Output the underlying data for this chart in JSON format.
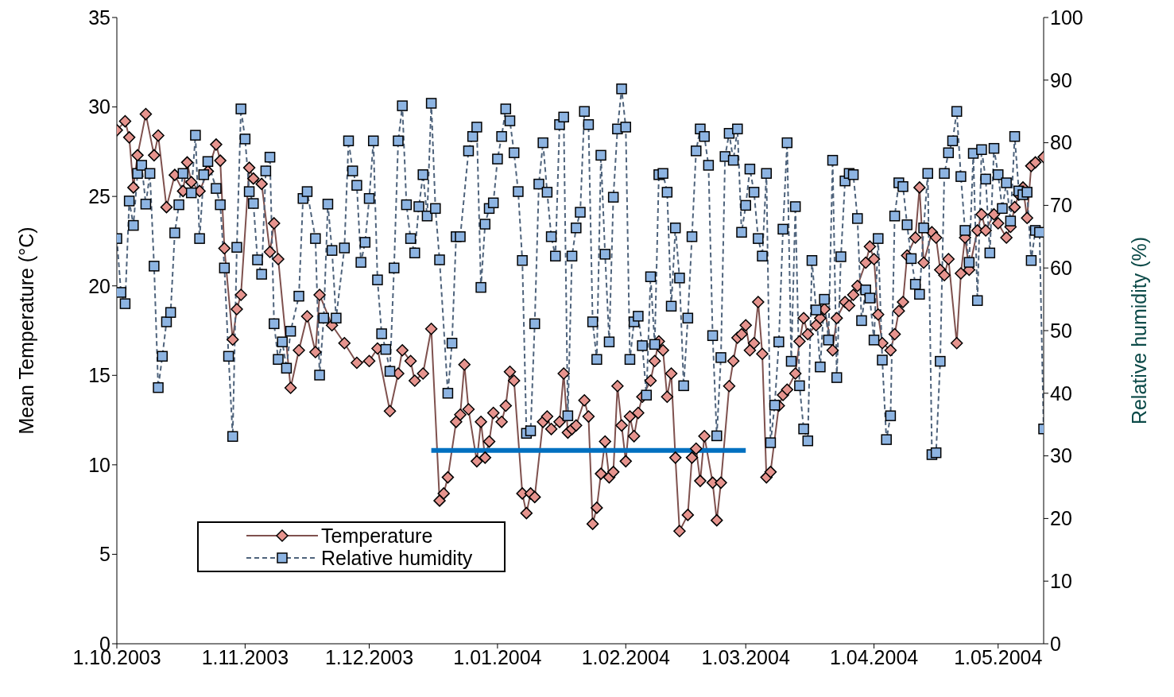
{
  "chart_data": {
    "type": "line",
    "ylabel": "Mean Temperature  (°C)",
    "y2label": "Relative humidity (%)",
    "xlim": [
      "2003-10-01",
      "2004-05-12"
    ],
    "xticks": [
      {
        "value": "2003-10-01",
        "label": "1.10.2003"
      },
      {
        "value": "2003-11-01",
        "label": "1.11.2003"
      },
      {
        "value": "2003-12-01",
        "label": "1.12.2003"
      },
      {
        "value": "2004-01-01",
        "label": "1.01.2004"
      },
      {
        "value": "2004-02-01",
        "label": "1.02.2004"
      },
      {
        "value": "2004-03-01",
        "label": "1.03.2004"
      },
      {
        "value": "2004-04-01",
        "label": "1.04.2004"
      },
      {
        "value": "2004-05-01",
        "label": "1.05.2004"
      }
    ],
    "ylim": [
      0,
      35
    ],
    "yticks": [
      0,
      5,
      10,
      15,
      20,
      25,
      30,
      35
    ],
    "y2lim": [
      0,
      100
    ],
    "y2ticks": [
      0,
      10,
      20,
      30,
      40,
      50,
      60,
      70,
      80,
      90,
      100
    ],
    "grid": false,
    "legend": "bottom left",
    "series": [
      {
        "name": "Temperature",
        "color": "#e6948e",
        "marker": "diamond",
        "line_style": "solid",
        "x": [
          "2003-10-01",
          "2003-10-03",
          "2003-10-04",
          "2003-10-05",
          "2003-10-06",
          "2003-10-08",
          "2003-10-10",
          "2003-10-11",
          "2003-10-13",
          "2003-10-15",
          "2003-10-17",
          "2003-10-18",
          "2003-10-19",
          "2003-10-21",
          "2003-10-23",
          "2003-10-25",
          "2003-10-26",
          "2003-10-27",
          "2003-10-29",
          "2003-10-30",
          "2003-10-31",
          "2003-11-02",
          "2003-11-03",
          "2003-11-05",
          "2003-11-07",
          "2003-11-08",
          "2003-11-09",
          "2003-11-12",
          "2003-11-14",
          "2003-11-16",
          "2003-11-18",
          "2003-11-19",
          "2003-11-22",
          "2003-11-25",
          "2003-11-28",
          "2003-12-01",
          "2003-12-03",
          "2003-12-06",
          "2003-12-08",
          "2003-12-09",
          "2003-12-11",
          "2003-12-12",
          "2003-12-14",
          "2003-12-16",
          "2003-12-18",
          "2003-12-19",
          "2003-12-20",
          "2003-12-22",
          "2003-12-23",
          "2003-12-24",
          "2003-12-25",
          "2003-12-27",
          "2003-12-28",
          "2003-12-29",
          "2003-12-30",
          "2003-12-31",
          "2004-01-02",
          "2004-01-03",
          "2004-01-04",
          "2004-01-05",
          "2004-01-07",
          "2004-01-08",
          "2004-01-09",
          "2004-01-10",
          "2004-01-12",
          "2004-01-13",
          "2004-01-14",
          "2004-01-16",
          "2004-01-17",
          "2004-01-18",
          "2004-01-19",
          "2004-01-20",
          "2004-01-22",
          "2004-01-23",
          "2004-01-24",
          "2004-01-25",
          "2004-01-26",
          "2004-01-27",
          "2004-01-28",
          "2004-01-29",
          "2004-01-30",
          "2004-01-31",
          "2004-02-01",
          "2004-02-02",
          "2004-02-03",
          "2004-02-04",
          "2004-02-05",
          "2004-02-07",
          "2004-02-08",
          "2004-02-09",
          "2004-02-10",
          "2004-02-11",
          "2004-02-12",
          "2004-02-13",
          "2004-02-14",
          "2004-02-16",
          "2004-02-17",
          "2004-02-18",
          "2004-02-19",
          "2004-02-20",
          "2004-02-22",
          "2004-02-23",
          "2004-02-24",
          "2004-02-26",
          "2004-02-27",
          "2004-02-28",
          "2004-02-29",
          "2004-03-01",
          "2004-03-02",
          "2004-03-03",
          "2004-03-04",
          "2004-03-05",
          "2004-03-06",
          "2004-03-07",
          "2004-03-09",
          "2004-03-10",
          "2004-03-11",
          "2004-03-13",
          "2004-03-14",
          "2004-03-15",
          "2004-03-16",
          "2004-03-18",
          "2004-03-19",
          "2004-03-20",
          "2004-03-22",
          "2004-03-23",
          "2004-03-25",
          "2004-03-26",
          "2004-03-27",
          "2004-03-28",
          "2004-03-30",
          "2004-03-31",
          "2004-04-01",
          "2004-04-02",
          "2004-04-03",
          "2004-04-05",
          "2004-04-06",
          "2004-04-07",
          "2004-04-08",
          "2004-04-09",
          "2004-04-11",
          "2004-04-12",
          "2004-04-13",
          "2004-04-15",
          "2004-04-16",
          "2004-04-17",
          "2004-04-18",
          "2004-04-19",
          "2004-04-21",
          "2004-04-22",
          "2004-04-23",
          "2004-04-24",
          "2004-04-26",
          "2004-04-27",
          "2004-04-28",
          "2004-04-30",
          "2004-05-01",
          "2004-05-03",
          "2004-05-04",
          "2004-05-05",
          "2004-05-06",
          "2004-05-07",
          "2004-05-08",
          "2004-05-09",
          "2004-05-10",
          "2004-05-12"
        ],
        "values": [
          28.7,
          29.2,
          28.3,
          25.5,
          27.3,
          29.6,
          27.3,
          28.4,
          24.4,
          26.2,
          25.3,
          26.9,
          25.8,
          25.3,
          26.4,
          27.9,
          27.0,
          22.1,
          17.0,
          18.7,
          19.5,
          26.6,
          26.0,
          25.7,
          21.9,
          23.5,
          21.5,
          14.3,
          16.4,
          18.3,
          16.3,
          19.5,
          17.8,
          16.8,
          15.7,
          15.8,
          16.5,
          13.0,
          15.1,
          16.4,
          15.8,
          14.7,
          15.1,
          17.6,
          8.0,
          8.4,
          9.3,
          12.4,
          12.8,
          15.6,
          13.1,
          10.2,
          12.4,
          10.4,
          11.3,
          12.9,
          12.4,
          13.3,
          15.2,
          14.7,
          8.4,
          7.3,
          8.4,
          8.2,
          12.4,
          12.7,
          12.0,
          12.4,
          15.1,
          11.8,
          12.0,
          12.2,
          13.6,
          12.7,
          6.7,
          7.6,
          9.5,
          11.3,
          9.3,
          9.6,
          14.4,
          12.2,
          10.2,
          12.7,
          11.6,
          12.9,
          13.8,
          14.7,
          15.8,
          16.9,
          16.4,
          13.8,
          15.1,
          10.4,
          6.3,
          7.2,
          10.4,
          10.9,
          9.1,
          11.6,
          9.0,
          6.9,
          9.0,
          14.4,
          15.8,
          17.1,
          17.3,
          17.8,
          16.4,
          16.8,
          19.1,
          16.2,
          9.3,
          9.6,
          13.3,
          13.9,
          14.2,
          15.1,
          16.9,
          18.2,
          17.3,
          17.8,
          18.2,
          18.7,
          16.4,
          18.2,
          19.1,
          18.9,
          19.5,
          20.0,
          21.3,
          22.2,
          21.5,
          18.4,
          16.8,
          16.4,
          17.3,
          18.6,
          19.1,
          21.7,
          22.7,
          25.5,
          21.3,
          23.0,
          22.7,
          20.9,
          20.6,
          21.5,
          16.8,
          20.7,
          22.7,
          20.9,
          23.1,
          24.0,
          23.1,
          24.0,
          23.5,
          22.7,
          23.3,
          24.4,
          25.1,
          25.5,
          23.8,
          26.7,
          26.9,
          27.2
        ]
      },
      {
        "name": "Relative humidity",
        "color": "#8db4e2",
        "marker": "square",
        "line_style": "dashed",
        "axis": "y2",
        "x": [
          "2003-10-01",
          "2003-10-02",
          "2003-10-03",
          "2003-10-04",
          "2003-10-05",
          "2003-10-06",
          "2003-10-07",
          "2003-10-08",
          "2003-10-09",
          "2003-10-10",
          "2003-10-11",
          "2003-10-12",
          "2003-10-13",
          "2003-10-14",
          "2003-10-15",
          "2003-10-16",
          "2003-10-17",
          "2003-10-19",
          "2003-10-20",
          "2003-10-21",
          "2003-10-22",
          "2003-10-23",
          "2003-10-25",
          "2003-10-26",
          "2003-10-27",
          "2003-10-28",
          "2003-10-29",
          "2003-10-30",
          "2003-10-31",
          "2003-11-01",
          "2003-11-02",
          "2003-11-03",
          "2003-11-04",
          "2003-11-05",
          "2003-11-06",
          "2003-11-07",
          "2003-11-08",
          "2003-11-09",
          "2003-11-10",
          "2003-11-11",
          "2003-11-12",
          "2003-11-14",
          "2003-11-15",
          "2003-11-16",
          "2003-11-18",
          "2003-11-19",
          "2003-11-20",
          "2003-11-21",
          "2003-11-22",
          "2003-11-23",
          "2003-11-25",
          "2003-11-26",
          "2003-11-27",
          "2003-11-28",
          "2003-11-29",
          "2003-11-30",
          "2003-12-01",
          "2003-12-02",
          "2003-12-03",
          "2003-12-04",
          "2003-12-05",
          "2003-12-06",
          "2003-12-07",
          "2003-12-08",
          "2003-12-09",
          "2003-12-10",
          "2003-12-11",
          "2003-12-12",
          "2003-12-13",
          "2003-12-14",
          "2003-12-15",
          "2003-12-16",
          "2003-12-17",
          "2003-12-18",
          "2003-12-20",
          "2003-12-21",
          "2003-12-22",
          "2003-12-23",
          "2003-12-25",
          "2003-12-26",
          "2003-12-27",
          "2003-12-28",
          "2003-12-29",
          "2003-12-30",
          "2003-12-31",
          "2004-01-01",
          "2004-01-02",
          "2004-01-03",
          "2004-01-04",
          "2004-01-05",
          "2004-01-06",
          "2004-01-07",
          "2004-01-08",
          "2004-01-09",
          "2004-01-10",
          "2004-01-11",
          "2004-01-12",
          "2004-01-13",
          "2004-01-14",
          "2004-01-15",
          "2004-01-16",
          "2004-01-17",
          "2004-01-18",
          "2004-01-19",
          "2004-01-20",
          "2004-01-21",
          "2004-01-22",
          "2004-01-23",
          "2004-01-24",
          "2004-01-25",
          "2004-01-26",
          "2004-01-27",
          "2004-01-28",
          "2004-01-29",
          "2004-01-30",
          "2004-01-31",
          "2004-02-01",
          "2004-02-02",
          "2004-02-03",
          "2004-02-04",
          "2004-02-05",
          "2004-02-06",
          "2004-02-07",
          "2004-02-08",
          "2004-02-09",
          "2004-02-10",
          "2004-02-11",
          "2004-02-12",
          "2004-02-13",
          "2004-02-14",
          "2004-02-15",
          "2004-02-16",
          "2004-02-17",
          "2004-02-18",
          "2004-02-19",
          "2004-02-20",
          "2004-02-21",
          "2004-02-22",
          "2004-02-23",
          "2004-02-24",
          "2004-02-25",
          "2004-02-26",
          "2004-02-27",
          "2004-02-28",
          "2004-02-29",
          "2004-03-01",
          "2004-03-02",
          "2004-03-03",
          "2004-03-04",
          "2004-03-05",
          "2004-03-06",
          "2004-03-07",
          "2004-03-08",
          "2004-03-09",
          "2004-03-10",
          "2004-03-11",
          "2004-03-12",
          "2004-03-13",
          "2004-03-14",
          "2004-03-15",
          "2004-03-16",
          "2004-03-17",
          "2004-03-18",
          "2004-03-19",
          "2004-03-20",
          "2004-03-21",
          "2004-03-22",
          "2004-03-23",
          "2004-03-24",
          "2004-03-25",
          "2004-03-26",
          "2004-03-27",
          "2004-03-28",
          "2004-03-29",
          "2004-03-30",
          "2004-03-31",
          "2004-04-01",
          "2004-04-02",
          "2004-04-03",
          "2004-04-04",
          "2004-04-05",
          "2004-04-06",
          "2004-04-07",
          "2004-04-08",
          "2004-04-09",
          "2004-04-10",
          "2004-04-11",
          "2004-04-12",
          "2004-04-13",
          "2004-04-14",
          "2004-04-15",
          "2004-04-16",
          "2004-04-17",
          "2004-04-18",
          "2004-04-19",
          "2004-04-20",
          "2004-04-21",
          "2004-04-22",
          "2004-04-23",
          "2004-04-24",
          "2004-04-25",
          "2004-04-26",
          "2004-04-27",
          "2004-04-28",
          "2004-04-29",
          "2004-04-30",
          "2004-05-01",
          "2004-05-02",
          "2004-05-03",
          "2004-05-04",
          "2004-05-05",
          "2004-05-06",
          "2004-05-07",
          "2004-05-08",
          "2004-05-09",
          "2004-05-10",
          "2004-05-11",
          "2004-05-12"
        ],
        "values": [
          64.7,
          56.1,
          54.3,
          70.7,
          66.8,
          75.1,
          76.4,
          70.2,
          75.1,
          60.3,
          40.9,
          45.9,
          51.4,
          52.9,
          65.6,
          70.1,
          75.1,
          72.0,
          81.2,
          64.7,
          74.9,
          77.0,
          72.7,
          70.1,
          60.0,
          45.9,
          33.1,
          63.3,
          85.4,
          80.6,
          72.2,
          70.3,
          61.3,
          59.0,
          75.5,
          77.7,
          51.1,
          45.4,
          48.2,
          44.0,
          49.9,
          55.5,
          71.1,
          72.2,
          64.7,
          42.9,
          52.0,
          70.2,
          62.8,
          52.0,
          63.2,
          80.3,
          75.5,
          73.2,
          60.9,
          64.1,
          71.1,
          80.3,
          58.1,
          49.5,
          47.0,
          43.5,
          60.0,
          80.3,
          85.9,
          70.1,
          64.7,
          62.4,
          69.8,
          74.9,
          68.3,
          86.3,
          69.5,
          61.3,
          40.0,
          48.0,
          65.0,
          65.0,
          78.7,
          81.0,
          82.5,
          56.9,
          67.0,
          69.5,
          70.4,
          77.4,
          81.0,
          85.4,
          83.5,
          78.4,
          72.2,
          61.2,
          33.6,
          34.0,
          51.1,
          73.4,
          80.0,
          72.1,
          65.0,
          61.9,
          82.9,
          84.1,
          36.4,
          61.9,
          66.4,
          68.9,
          85.0,
          82.9,
          51.4,
          45.4,
          78.0,
          62.2,
          48.2,
          71.3,
          82.2,
          88.6,
          82.5,
          45.4,
          51.4,
          52.3,
          47.6,
          39.7,
          58.6,
          47.8,
          74.9,
          75.1,
          72.1,
          53.9,
          66.4,
          58.4,
          41.2,
          52.0,
          65.0,
          78.7,
          82.2,
          81.0,
          76.4,
          49.2,
          33.2,
          45.7,
          77.8,
          81.5,
          77.2,
          82.2,
          65.7,
          70.0,
          75.8,
          72.1,
          64.7,
          61.9,
          75.1,
          32.1,
          38.1,
          48.2,
          66.2,
          80.0,
          45.1,
          69.8,
          41.2,
          34.3,
          32.4,
          61.2,
          53.3,
          44.2,
          55.0,
          48.5,
          77.2,
          42.5,
          61.8,
          73.9,
          75.1,
          74.9,
          67.9,
          51.6,
          56.5,
          55.2,
          48.5,
          64.7,
          45.3,
          32.6,
          36.4,
          68.3,
          73.6,
          73.0,
          66.9,
          61.5,
          57.4,
          55.8,
          66.4,
          75.1,
          30.2,
          30.5,
          45.1,
          75.1,
          78.4,
          80.3,
          85.0,
          74.6,
          66.0,
          60.9,
          78.3,
          54.8,
          78.9,
          74.2,
          62.4,
          79.1,
          74.9,
          69.5,
          73.6,
          67.5,
          81.0,
          72.3,
          71.7,
          72.1,
          61.2,
          66.0,
          65.7,
          34.3
        ]
      },
      {
        "color": "#0070c0",
        "marker": "none",
        "line_style": "solid",
        "x": [
          "2003-12-16",
          "2004-03-01"
        ],
        "values": [
          10.8,
          10.8
        ]
      }
    ]
  }
}
